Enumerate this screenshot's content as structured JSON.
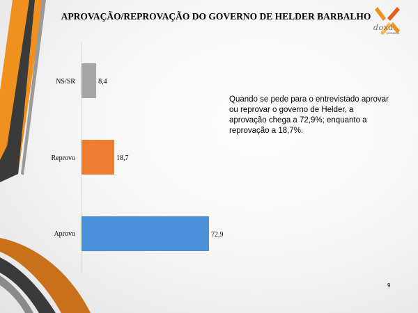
{
  "slide": {
    "title": "APROVAÇÃO/REPROVAÇÃO DO GOVERNO DE HELDER BARBALHO",
    "annotation": "Quando se pede para o entrevistado aprovar ou reprovar o governo de Helder, a aprovação chega a 72,9%; enquanto a reprovação a 18,7%.",
    "page_number": "9",
    "logo": {
      "word": "doxa",
      "sub": "pesquisa"
    }
  },
  "colors": {
    "ns_sr": "#a6a6a6",
    "reprovo": "#ed7d31",
    "aprovo": "#4a90d9",
    "deco_orange": "#f0901e",
    "deco_dark": "#3a3a3a"
  },
  "chart_data": {
    "type": "bar",
    "orientation": "horizontal",
    "categories": [
      "NS/SR",
      "Reprovo",
      "Aprovo"
    ],
    "values": [
      8.4,
      18.7,
      72.9
    ],
    "value_labels": [
      "8,4",
      "18,7",
      "72,9"
    ],
    "title": "",
    "xlabel": "",
    "ylabel": "",
    "xlim": [
      0,
      100
    ],
    "grid": false,
    "legend": "none"
  }
}
